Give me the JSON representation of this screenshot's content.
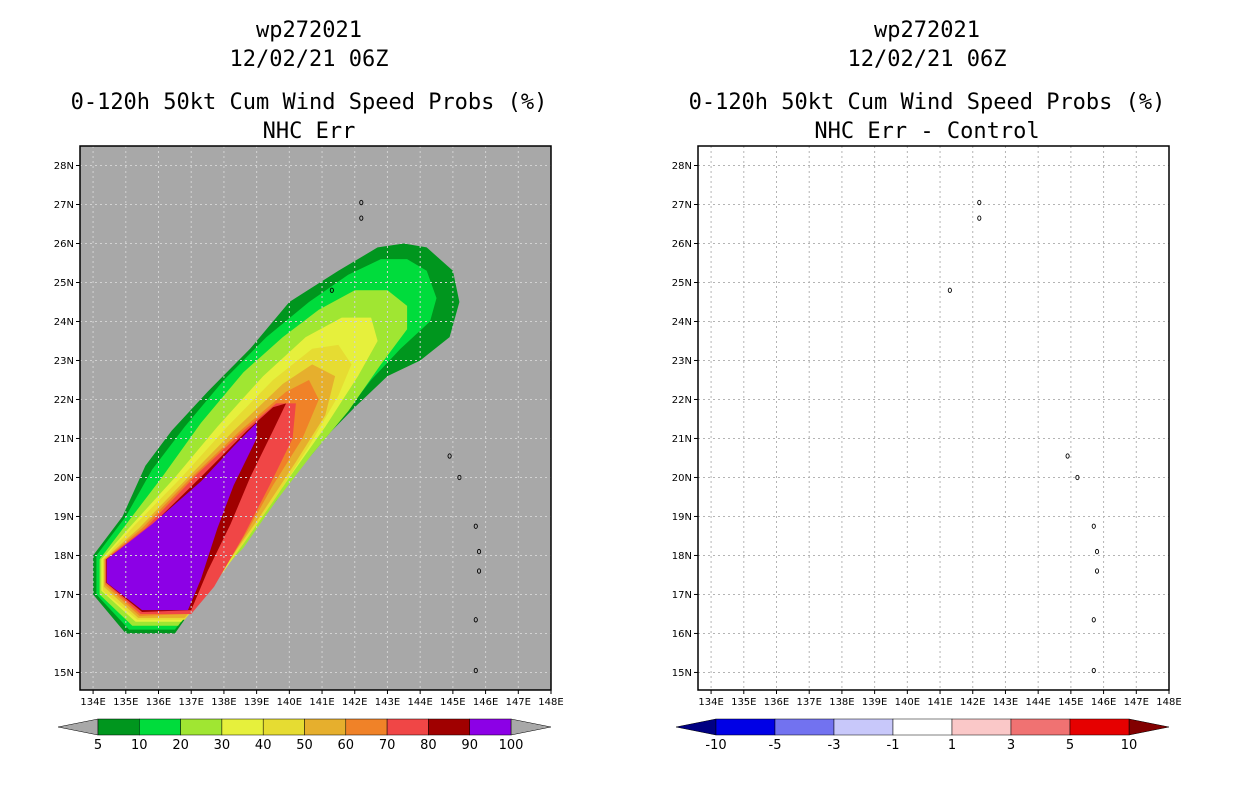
{
  "charts": [
    {
      "id": "left",
      "title_lines": [
        "wp272021",
        "12/02/21 06Z",
        "0-120h 50kt Cum Wind Speed Probs (%)",
        "NHC Err"
      ],
      "background": "#a8a8a8",
      "grid": true,
      "colorbar": {
        "labels": [
          "5",
          "10",
          "20",
          "30",
          "40",
          "50",
          "60",
          "70",
          "80",
          "90",
          "100"
        ],
        "colors": [
          "#00961e",
          "#00dc3c",
          "#a0e632",
          "#e6f03c",
          "#e6dc32",
          "#e6af2d",
          "#f08228",
          "#f04646",
          "#a00000",
          "#8c00e6"
        ],
        "left_arrow": "#a8a8a8",
        "right_arrow": "#a8a8a8"
      }
    },
    {
      "id": "right",
      "title_lines": [
        "wp272021",
        "12/02/21 06Z",
        "0-120h 50kt Cum Wind Speed Probs (%)",
        "NHC Err - Control"
      ],
      "background": "#ffffff",
      "grid": true,
      "colorbar": {
        "labels": [
          "-10",
          "-5",
          "-3",
          "-1",
          "1",
          "3",
          "5",
          "10"
        ],
        "colors": [
          "#0000e6",
          "#7272f0",
          "#c8c8fa",
          "#ffffff",
          "#fac8c8",
          "#f07272",
          "#e60000"
        ],
        "left_arrow": "#000082",
        "right_arrow": "#820000"
      }
    }
  ],
  "chart_data": [
    {
      "type": "heatmap",
      "title": "0-120h 50kt Cum Wind Speed Probs (%)",
      "subtitle": "NHC Err",
      "storm": "wp272021",
      "datetime": "12/02/21 06Z",
      "x_ticks": [
        "134E",
        "135E",
        "136E",
        "137E",
        "138E",
        "139E",
        "140E",
        "141E",
        "142E",
        "143E",
        "144E",
        "145E",
        "146E",
        "147E",
        "148E"
      ],
      "y_ticks": [
        "15N",
        "16N",
        "17N",
        "18N",
        "19N",
        "20N",
        "21N",
        "22N",
        "23N",
        "24N",
        "25N",
        "26N",
        "27N",
        "28N"
      ],
      "xlim": [
        133.6,
        148
      ],
      "ylim": [
        14.55,
        28.5
      ],
      "levels": [
        5,
        10,
        20,
        30,
        40,
        50,
        60,
        70,
        80,
        90,
        100
      ],
      "contours": [
        {
          "level": 5,
          "lonlat": [
            [
              134.0,
              18.0
            ],
            [
              134.9,
              19.0
            ],
            [
              135.6,
              20.3
            ],
            [
              136.4,
              21.2
            ],
            [
              137.5,
              22.2
            ],
            [
              138.8,
              23.3
            ],
            [
              140.0,
              24.5
            ],
            [
              141.5,
              25.3
            ],
            [
              142.7,
              25.9
            ],
            [
              143.5,
              26.0
            ],
            [
              144.2,
              25.9
            ],
            [
              145.0,
              25.3
            ],
            [
              145.2,
              24.5
            ],
            [
              144.9,
              23.6
            ],
            [
              144.0,
              23.0
            ],
            [
              143.0,
              22.6
            ],
            [
              142.0,
              21.8
            ],
            [
              140.6,
              20.6
            ],
            [
              139.6,
              19.4
            ],
            [
              138.6,
              18.3
            ],
            [
              137.5,
              17.2
            ],
            [
              136.5,
              16.0
            ],
            [
              135.0,
              16.0
            ],
            [
              134.0,
              17.0
            ]
          ]
        },
        {
          "level": 10,
          "lonlat": [
            [
              134.1,
              18.0
            ],
            [
              135.0,
              19.0
            ],
            [
              135.8,
              20.2
            ],
            [
              136.8,
              21.3
            ],
            [
              138.0,
              22.5
            ],
            [
              139.3,
              23.6
            ],
            [
              140.6,
              24.5
            ],
            [
              141.8,
              25.2
            ],
            [
              142.8,
              25.6
            ],
            [
              143.6,
              25.6
            ],
            [
              144.2,
              25.3
            ],
            [
              144.5,
              24.6
            ],
            [
              144.3,
              24.0
            ],
            [
              143.4,
              23.3
            ],
            [
              142.5,
              22.5
            ],
            [
              141.4,
              21.3
            ],
            [
              140.2,
              20.1
            ],
            [
              139.2,
              19.0
            ],
            [
              138.2,
              17.9
            ],
            [
              137.4,
              17.1
            ],
            [
              136.5,
              16.1
            ],
            [
              135.1,
              16.1
            ],
            [
              134.1,
              17.0
            ]
          ]
        },
        {
          "level": 20,
          "lonlat": [
            [
              134.2,
              17.9
            ],
            [
              135.1,
              18.9
            ],
            [
              136.1,
              20.0
            ],
            [
              137.3,
              21.4
            ],
            [
              138.6,
              22.7
            ],
            [
              139.8,
              23.6
            ],
            [
              140.9,
              24.3
            ],
            [
              142.0,
              24.8
            ],
            [
              143.0,
              24.8
            ],
            [
              143.6,
              24.4
            ],
            [
              143.6,
              23.8
            ],
            [
              142.8,
              22.9
            ],
            [
              141.8,
              21.7
            ],
            [
              140.7,
              20.6
            ],
            [
              139.6,
              19.4
            ],
            [
              138.6,
              18.2
            ],
            [
              137.6,
              17.3
            ],
            [
              136.6,
              16.2
            ],
            [
              135.2,
              16.2
            ],
            [
              134.2,
              17.0
            ]
          ]
        },
        {
          "level": 30,
          "lonlat": [
            [
              134.25,
              17.9
            ],
            [
              135.2,
              18.8
            ],
            [
              136.5,
              20.0
            ],
            [
              137.8,
              21.3
            ],
            [
              139.2,
              22.6
            ],
            [
              140.5,
              23.6
            ],
            [
              141.6,
              24.1
            ],
            [
              142.5,
              24.1
            ],
            [
              142.7,
              23.5
            ],
            [
              142.1,
              22.6
            ],
            [
              141.1,
              21.3
            ],
            [
              140.0,
              20.0
            ],
            [
              139.1,
              18.9
            ],
            [
              138.0,
              17.6
            ],
            [
              136.7,
              16.3
            ],
            [
              135.3,
              16.3
            ],
            [
              134.25,
              17.1
            ]
          ]
        },
        {
          "level": 40,
          "lonlat": [
            [
              134.3,
              17.9
            ],
            [
              135.3,
              18.8
            ],
            [
              136.7,
              20.0
            ],
            [
              138.1,
              21.3
            ],
            [
              139.5,
              22.5
            ],
            [
              140.7,
              23.3
            ],
            [
              141.5,
              23.4
            ],
            [
              141.9,
              22.9
            ],
            [
              141.5,
              22.1
            ],
            [
              140.6,
              20.8
            ],
            [
              139.6,
              19.5
            ],
            [
              138.6,
              18.3
            ],
            [
              137.6,
              17.2
            ],
            [
              136.8,
              16.35
            ],
            [
              135.35,
              16.35
            ],
            [
              134.3,
              17.1
            ]
          ]
        },
        {
          "level": 50,
          "lonlat": [
            [
              134.33,
              17.9
            ],
            [
              135.4,
              18.7
            ],
            [
              136.9,
              20.0
            ],
            [
              138.3,
              21.2
            ],
            [
              139.8,
              22.4
            ],
            [
              140.7,
              22.9
            ],
            [
              141.4,
              22.6
            ],
            [
              141.1,
              21.6
            ],
            [
              140.2,
              20.4
            ],
            [
              139.1,
              19.0
            ],
            [
              138.1,
              17.8
            ],
            [
              137.1,
              16.7
            ],
            [
              136.8,
              16.4
            ],
            [
              135.38,
              16.4
            ],
            [
              134.33,
              17.2
            ]
          ]
        },
        {
          "level": 60,
          "lonlat": [
            [
              134.36,
              17.9
            ],
            [
              135.5,
              18.7
            ],
            [
              137.0,
              20.0
            ],
            [
              138.5,
              21.2
            ],
            [
              139.9,
              22.2
            ],
            [
              140.6,
              22.5
            ],
            [
              140.9,
              22.0
            ],
            [
              140.4,
              21.0
            ],
            [
              139.5,
              19.8
            ],
            [
              138.7,
              18.6
            ],
            [
              137.9,
              17.5
            ],
            [
              137.0,
              16.5
            ],
            [
              135.42,
              16.45
            ],
            [
              134.36,
              17.25
            ]
          ]
        },
        {
          "level": 70,
          "lonlat": [
            [
              134.38,
              17.9
            ],
            [
              135.6,
              18.7
            ],
            [
              137.2,
              20.1
            ],
            [
              138.6,
              21.2
            ],
            [
              139.6,
              21.9
            ],
            [
              140.2,
              21.9
            ],
            [
              140.1,
              21.0
            ],
            [
              139.4,
              19.8
            ],
            [
              138.6,
              18.5
            ],
            [
              137.7,
              17.2
            ],
            [
              137.0,
              16.5
            ],
            [
              135.45,
              16.5
            ],
            [
              134.38,
              17.3
            ]
          ]
        },
        {
          "level": 80,
          "lonlat": [
            [
              134.4,
              17.9
            ],
            [
              135.7,
              18.7
            ],
            [
              137.4,
              20.1
            ],
            [
              138.7,
              21.2
            ],
            [
              139.5,
              21.8
            ],
            [
              139.9,
              21.9
            ],
            [
              139.5,
              21.2
            ],
            [
              138.8,
              20.0
            ],
            [
              138.2,
              18.8
            ],
            [
              137.5,
              17.6
            ],
            [
              137.0,
              16.6
            ],
            [
              135.5,
              16.55
            ],
            [
              134.4,
              17.3
            ]
          ]
        },
        {
          "level": 90,
          "lonlat": [
            [
              134.42,
              17.9
            ],
            [
              135.8,
              18.8
            ],
            [
              137.3,
              19.9
            ],
            [
              138.3,
              20.8
            ],
            [
              139.0,
              21.4
            ],
            [
              139.0,
              21.0
            ],
            [
              138.3,
              19.8
            ],
            [
              137.8,
              18.7
            ],
            [
              137.3,
              17.4
            ],
            [
              136.9,
              16.6
            ],
            [
              135.5,
              16.6
            ],
            [
              134.42,
              17.3
            ]
          ]
        }
      ],
      "islands_lonlat": [
        [
          142.2,
          27.05
        ],
        [
          142.2,
          26.65
        ],
        [
          141.3,
          24.8
        ],
        [
          144.9,
          20.55
        ],
        [
          145.2,
          20.0
        ],
        [
          145.7,
          18.75
        ],
        [
          145.8,
          18.1
        ],
        [
          145.8,
          17.6
        ],
        [
          145.7,
          16.35
        ],
        [
          145.7,
          15.05
        ]
      ]
    },
    {
      "type": "heatmap",
      "title": "0-120h 50kt Cum Wind Speed Probs (%)",
      "subtitle": "NHC Err - Control",
      "storm": "wp272021",
      "datetime": "12/02/21 06Z",
      "x_ticks": [
        "134E",
        "135E",
        "136E",
        "137E",
        "138E",
        "139E",
        "140E",
        "141E",
        "142E",
        "143E",
        "144E",
        "145E",
        "146E",
        "147E",
        "148E"
      ],
      "y_ticks": [
        "15N",
        "16N",
        "17N",
        "18N",
        "19N",
        "20N",
        "21N",
        "22N",
        "23N",
        "24N",
        "25N",
        "26N",
        "27N",
        "28N"
      ],
      "xlim": [
        133.6,
        148
      ],
      "ylim": [
        14.55,
        28.5
      ],
      "levels": [
        -10,
        -5,
        -3,
        -1,
        1,
        3,
        5,
        10
      ],
      "contours": [],
      "islands_lonlat": [
        [
          142.2,
          27.05
        ],
        [
          142.2,
          26.65
        ],
        [
          141.3,
          24.8
        ],
        [
          144.9,
          20.55
        ],
        [
          145.2,
          20.0
        ],
        [
          145.7,
          18.75
        ],
        [
          145.8,
          18.1
        ],
        [
          145.8,
          17.6
        ],
        [
          145.7,
          16.35
        ],
        [
          145.7,
          15.05
        ]
      ]
    }
  ]
}
